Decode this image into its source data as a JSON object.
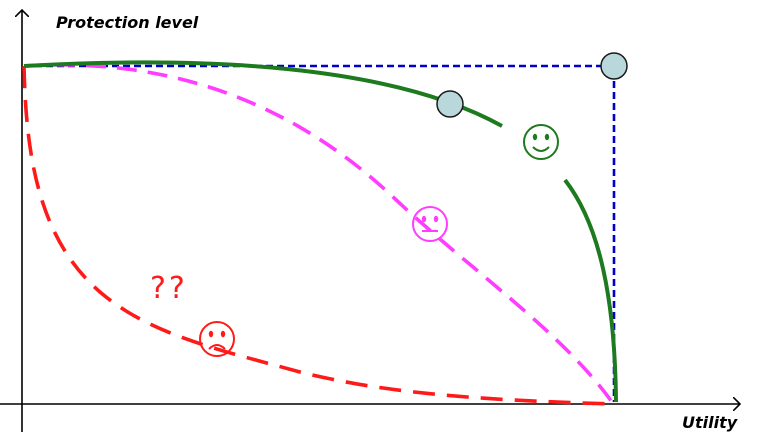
{
  "axes": {
    "y_label": "Protection level",
    "x_label": "Utility"
  },
  "annotation": {
    "text": "??"
  },
  "colors": {
    "axis": "#000000",
    "green": "#1e7a1e",
    "magenta": "#ff3cff",
    "red": "#ff1a1a",
    "blue": "#0000cc",
    "point_fill": "#b8d8dc",
    "point_stroke": "#1a1a1a"
  },
  "curves": [
    {
      "name": "green",
      "style": "solid",
      "face": "happy-face-icon"
    },
    {
      "name": "magenta",
      "style": "dashed",
      "face": "neutral-face-icon"
    },
    {
      "name": "red",
      "style": "dashed",
      "face": "sad-face-icon"
    },
    {
      "name": "blue",
      "style": "dashed"
    }
  ]
}
